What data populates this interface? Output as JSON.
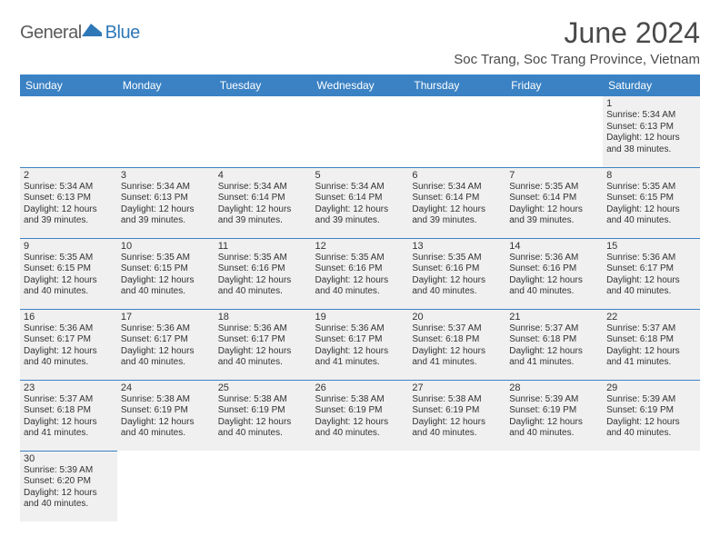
{
  "logo": {
    "text1": "General",
    "text2": "Blue"
  },
  "title": "June 2024",
  "location": "Soc Trang, Soc Trang Province, Vietnam",
  "colors": {
    "header_bg": "#3b82c4",
    "header_text": "#ffffff",
    "border": "#3b82c4",
    "shaded_bg": "#f0f0f0",
    "logo_gray": "#5a5a5a",
    "logo_blue": "#2e78b8",
    "text": "#333333"
  },
  "typography": {
    "title_fontsize": 32,
    "location_fontsize": 15,
    "dayheader_fontsize": 12,
    "daynum_fontsize": 11,
    "cell_fontsize": 10
  },
  "layout": {
    "columns": 7,
    "rows": 6,
    "start_weekday": "Sunday",
    "first_day_column": 6
  },
  "weekdays": [
    "Sunday",
    "Monday",
    "Tuesday",
    "Wednesday",
    "Thursday",
    "Friday",
    "Saturday"
  ],
  "days": [
    {
      "n": 1,
      "sr": "5:34 AM",
      "ss": "6:13 PM",
      "dl": "12 hours and 38 minutes."
    },
    {
      "n": 2,
      "sr": "5:34 AM",
      "ss": "6:13 PM",
      "dl": "12 hours and 39 minutes."
    },
    {
      "n": 3,
      "sr": "5:34 AM",
      "ss": "6:13 PM",
      "dl": "12 hours and 39 minutes."
    },
    {
      "n": 4,
      "sr": "5:34 AM",
      "ss": "6:14 PM",
      "dl": "12 hours and 39 minutes."
    },
    {
      "n": 5,
      "sr": "5:34 AM",
      "ss": "6:14 PM",
      "dl": "12 hours and 39 minutes."
    },
    {
      "n": 6,
      "sr": "5:34 AM",
      "ss": "6:14 PM",
      "dl": "12 hours and 39 minutes."
    },
    {
      "n": 7,
      "sr": "5:35 AM",
      "ss": "6:14 PM",
      "dl": "12 hours and 39 minutes."
    },
    {
      "n": 8,
      "sr": "5:35 AM",
      "ss": "6:15 PM",
      "dl": "12 hours and 40 minutes."
    },
    {
      "n": 9,
      "sr": "5:35 AM",
      "ss": "6:15 PM",
      "dl": "12 hours and 40 minutes."
    },
    {
      "n": 10,
      "sr": "5:35 AM",
      "ss": "6:15 PM",
      "dl": "12 hours and 40 minutes."
    },
    {
      "n": 11,
      "sr": "5:35 AM",
      "ss": "6:16 PM",
      "dl": "12 hours and 40 minutes."
    },
    {
      "n": 12,
      "sr": "5:35 AM",
      "ss": "6:16 PM",
      "dl": "12 hours and 40 minutes."
    },
    {
      "n": 13,
      "sr": "5:35 AM",
      "ss": "6:16 PM",
      "dl": "12 hours and 40 minutes."
    },
    {
      "n": 14,
      "sr": "5:36 AM",
      "ss": "6:16 PM",
      "dl": "12 hours and 40 minutes."
    },
    {
      "n": 15,
      "sr": "5:36 AM",
      "ss": "6:17 PM",
      "dl": "12 hours and 40 minutes."
    },
    {
      "n": 16,
      "sr": "5:36 AM",
      "ss": "6:17 PM",
      "dl": "12 hours and 40 minutes."
    },
    {
      "n": 17,
      "sr": "5:36 AM",
      "ss": "6:17 PM",
      "dl": "12 hours and 40 minutes."
    },
    {
      "n": 18,
      "sr": "5:36 AM",
      "ss": "6:17 PM",
      "dl": "12 hours and 40 minutes."
    },
    {
      "n": 19,
      "sr": "5:36 AM",
      "ss": "6:17 PM",
      "dl": "12 hours and 41 minutes."
    },
    {
      "n": 20,
      "sr": "5:37 AM",
      "ss": "6:18 PM",
      "dl": "12 hours and 41 minutes."
    },
    {
      "n": 21,
      "sr": "5:37 AM",
      "ss": "6:18 PM",
      "dl": "12 hours and 41 minutes."
    },
    {
      "n": 22,
      "sr": "5:37 AM",
      "ss": "6:18 PM",
      "dl": "12 hours and 41 minutes."
    },
    {
      "n": 23,
      "sr": "5:37 AM",
      "ss": "6:18 PM",
      "dl": "12 hours and 41 minutes."
    },
    {
      "n": 24,
      "sr": "5:38 AM",
      "ss": "6:19 PM",
      "dl": "12 hours and 40 minutes."
    },
    {
      "n": 25,
      "sr": "5:38 AM",
      "ss": "6:19 PM",
      "dl": "12 hours and 40 minutes."
    },
    {
      "n": 26,
      "sr": "5:38 AM",
      "ss": "6:19 PM",
      "dl": "12 hours and 40 minutes."
    },
    {
      "n": 27,
      "sr": "5:38 AM",
      "ss": "6:19 PM",
      "dl": "12 hours and 40 minutes."
    },
    {
      "n": 28,
      "sr": "5:39 AM",
      "ss": "6:19 PM",
      "dl": "12 hours and 40 minutes."
    },
    {
      "n": 29,
      "sr": "5:39 AM",
      "ss": "6:19 PM",
      "dl": "12 hours and 40 minutes."
    },
    {
      "n": 30,
      "sr": "5:39 AM",
      "ss": "6:20 PM",
      "dl": "12 hours and 40 minutes."
    }
  ],
  "labels": {
    "sunrise": "Sunrise:",
    "sunset": "Sunset:",
    "daylight": "Daylight:"
  }
}
